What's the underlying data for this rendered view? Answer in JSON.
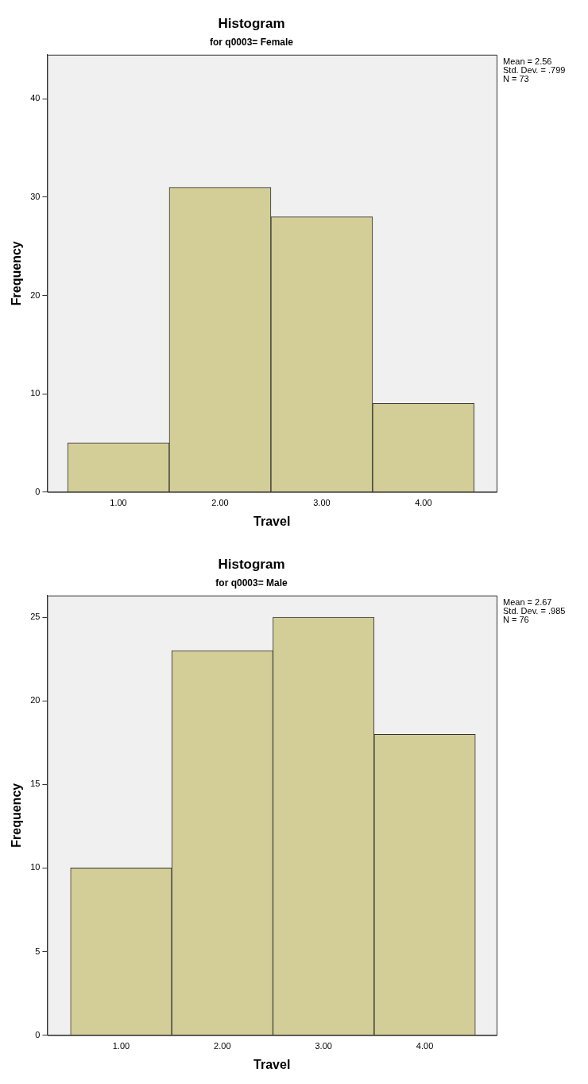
{
  "chart_data": [
    {
      "type": "histogram",
      "title": "Histogram",
      "subtitle": "for q0003= Female",
      "xlabel": "Travel",
      "ylabel": "Frequency",
      "bins": [
        0.5,
        1.5,
        2.5,
        3.5,
        4.5
      ],
      "values": [
        5,
        31,
        28,
        9
      ],
      "color": "#d3ce97",
      "xlim": [
        0.3,
        4.72
      ],
      "xticks": [
        {
          "value": 1,
          "label": "1.00"
        },
        {
          "value": 2,
          "label": "2.00"
        },
        {
          "value": 3,
          "label": "3.00"
        },
        {
          "value": 4,
          "label": "4.00"
        }
      ],
      "ylim": [
        0,
        44.5
      ],
      "yticks": [
        0,
        10,
        20,
        30,
        40
      ],
      "grid": false,
      "legend": false,
      "annotations": [
        "Mean = 2.56",
        "Std. Dev. = .799",
        "N = 73"
      ]
    },
    {
      "type": "histogram",
      "title": "Histogram",
      "subtitle": "for q0003= Male",
      "xlabel": "Travel",
      "ylabel": "Frequency",
      "bins": [
        0.5,
        1.5,
        2.5,
        3.5,
        4.5
      ],
      "values": [
        10,
        23,
        25,
        18
      ],
      "color": "#d3ce97",
      "xlim": [
        0.27,
        4.71
      ],
      "xticks": [
        {
          "value": 1,
          "label": "1.00"
        },
        {
          "value": 2,
          "label": "2.00"
        },
        {
          "value": 3,
          "label": "3.00"
        },
        {
          "value": 4,
          "label": "4.00"
        }
      ],
      "ylim": [
        0,
        26.3
      ],
      "yticks": [
        0,
        5,
        10,
        15,
        20,
        25
      ],
      "grid": false,
      "legend": false,
      "annotations": [
        "Mean = 2.67",
        "Std. Dev. = .985",
        "N = 76"
      ]
    }
  ]
}
